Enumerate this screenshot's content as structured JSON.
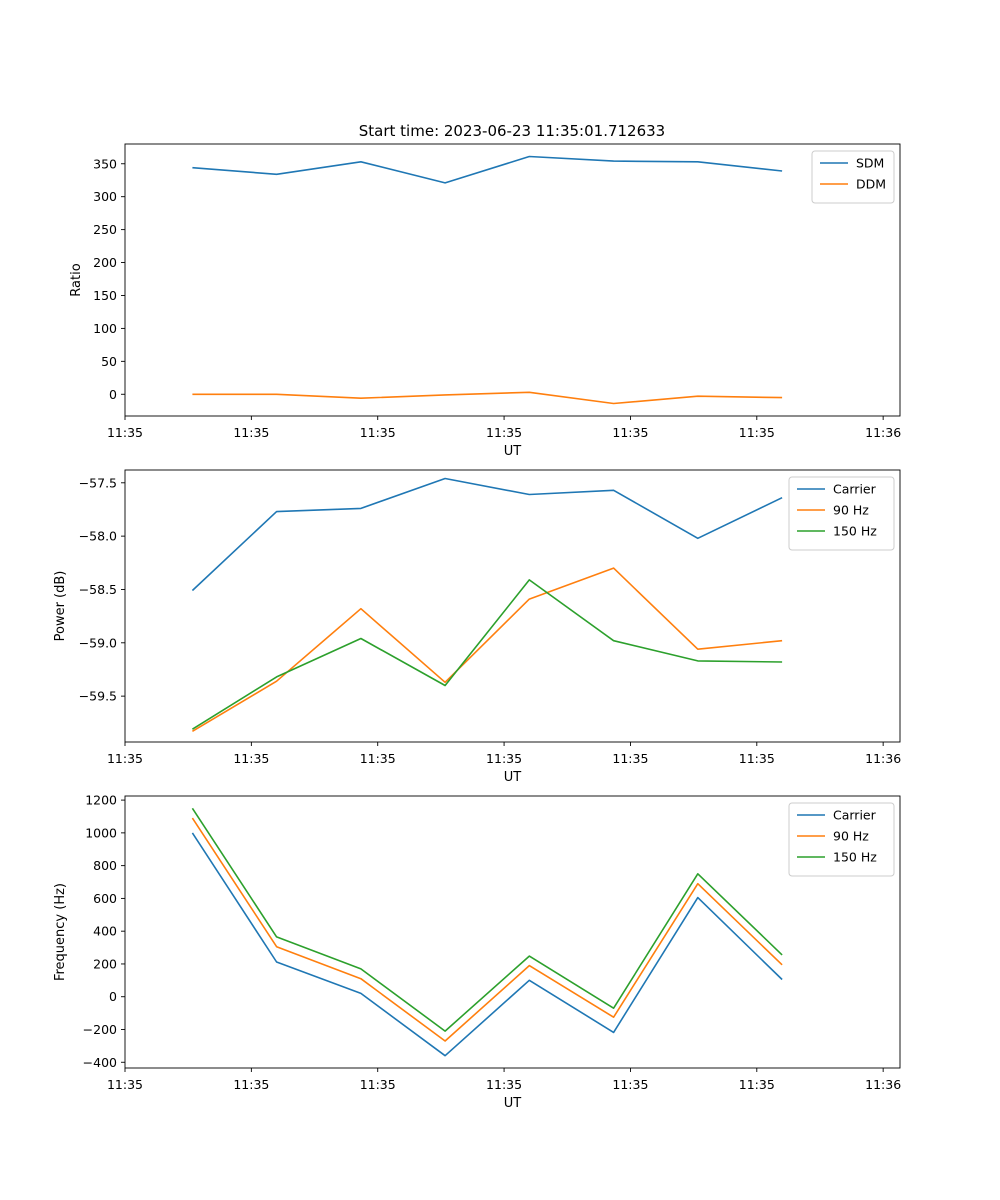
{
  "title": "Start time: 2023-06-23 11:35:01.712633",
  "chart_data": [
    {
      "type": "line",
      "xlabel": "UT",
      "ylabel": "Ratio",
      "x": [
        1,
        2,
        3,
        4,
        5,
        6,
        7,
        8
      ],
      "xlim": [
        0.2,
        9.4
      ],
      "ylim": [
        -33,
        380
      ],
      "yticks": [
        0,
        50,
        100,
        150,
        200,
        250,
        300,
        350
      ],
      "xticks": [
        0.2,
        1.7,
        3.2,
        4.7,
        6.2,
        7.7,
        9.2
      ],
      "xtick_labels": [
        "11:35",
        "11:35",
        "11:35",
        "11:35",
        "11:35",
        "11:35",
        "11:36"
      ],
      "legend_position": "upper-right",
      "grid": false,
      "series": [
        {
          "name": "SDM",
          "color": "#1f77b4",
          "values": [
            344,
            334,
            353,
            321,
            361,
            354,
            353,
            339
          ]
        },
        {
          "name": "DDM",
          "color": "#ff7f0e",
          "values": [
            0,
            0,
            -6,
            -1,
            3,
            -14,
            -3,
            -5
          ]
        }
      ]
    },
    {
      "type": "line",
      "xlabel": "UT",
      "ylabel": "Power (dB)",
      "x": [
        1,
        2,
        3,
        4,
        5,
        6,
        7,
        8
      ],
      "xlim": [
        0.2,
        9.4
      ],
      "ylim": [
        -59.93,
        -57.38
      ],
      "yticks": [
        -59.5,
        -59.0,
        -58.5,
        -58.0,
        -57.5
      ],
      "ytick_labels": [
        "−59.5",
        "−59.0",
        "−58.5",
        "−58.0",
        "−57.5"
      ],
      "xticks": [
        0.2,
        1.7,
        3.2,
        4.7,
        6.2,
        7.7,
        9.2
      ],
      "xtick_labels": [
        "11:35",
        "11:35",
        "11:35",
        "11:35",
        "11:35",
        "11:35",
        "11:36"
      ],
      "legend_position": "upper-right",
      "grid": false,
      "series": [
        {
          "name": "Carrier",
          "color": "#1f77b4",
          "values": [
            -58.51,
            -57.77,
            -57.74,
            -57.46,
            -57.61,
            -57.57,
            -58.02,
            -57.64
          ]
        },
        {
          "name": "90 Hz",
          "color": "#ff7f0e",
          "values": [
            -59.83,
            -59.36,
            -58.68,
            -59.37,
            -58.59,
            -58.3,
            -59.06,
            -58.98
          ]
        },
        {
          "name": "150 Hz",
          "color": "#2ca02c",
          "values": [
            -59.81,
            -59.32,
            -58.96,
            -59.4,
            -58.41,
            -58.98,
            -59.17,
            -59.18
          ]
        }
      ]
    },
    {
      "type": "line",
      "xlabel": "UT",
      "ylabel": "Frequency (Hz)",
      "x": [
        1,
        2,
        3,
        4,
        5,
        6,
        7,
        8
      ],
      "xlim": [
        0.2,
        9.4
      ],
      "ylim": [
        -435,
        1225
      ],
      "yticks": [
        -400,
        -200,
        0,
        200,
        400,
        600,
        800,
        1000,
        1200
      ],
      "ytick_labels": [
        "−400",
        "−200",
        "0",
        "200",
        "400",
        "600",
        "800",
        "1000",
        "1200"
      ],
      "xticks": [
        0.2,
        1.7,
        3.2,
        4.7,
        6.2,
        7.7,
        9.2
      ],
      "xtick_labels": [
        "11:35",
        "11:35",
        "11:35",
        "11:35",
        "11:35",
        "11:35",
        "11:36"
      ],
      "legend_position": "upper-right",
      "grid": false,
      "series": [
        {
          "name": "Carrier",
          "color": "#1f77b4",
          "values": [
            1000,
            212,
            20,
            -360,
            100,
            -218,
            605,
            105
          ]
        },
        {
          "name": "90 Hz",
          "color": "#ff7f0e",
          "values": [
            1090,
            305,
            110,
            -270,
            190,
            -125,
            690,
            195
          ]
        },
        {
          "name": "150 Hz",
          "color": "#2ca02c",
          "values": [
            1150,
            365,
            170,
            -210,
            248,
            -70,
            750,
            255
          ]
        }
      ]
    }
  ]
}
